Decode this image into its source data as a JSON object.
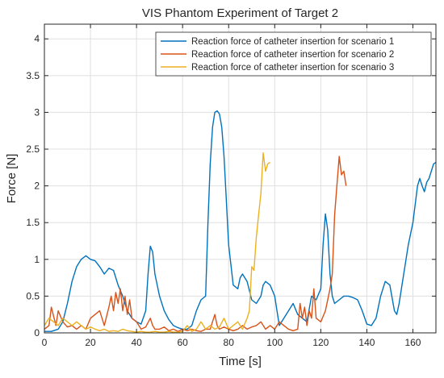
{
  "chart_data": {
    "type": "line",
    "title": "VIS Phantom Experiment of Target 2",
    "xlabel": "Time [s]",
    "ylabel": "Force [N]",
    "xlim": [
      0,
      170
    ],
    "ylim": [
      0,
      4.2
    ],
    "xticks": [
      0,
      20,
      40,
      60,
      80,
      100,
      120,
      140,
      160
    ],
    "yticks": [
      0,
      0.5,
      1,
      1.5,
      2,
      2.5,
      3,
      3.5,
      4
    ],
    "xtick_labels": [
      "0",
      "20",
      "40",
      "60",
      "80",
      "100",
      "120",
      "140",
      "160"
    ],
    "ytick_labels": [
      "0",
      "0.5",
      "1",
      "1.5",
      "2",
      "2.5",
      "3",
      "3.5",
      "4"
    ],
    "grid": true,
    "legend_position": "top-right",
    "series": [
      {
        "name": "Reaction force of catheter insertion for scenario 1",
        "color": "#0072BD",
        "x": [
          0,
          3,
          6,
          8,
          10,
          12,
          14,
          16,
          18,
          20,
          22,
          24,
          26,
          28,
          30,
          32,
          34,
          36,
          38,
          40,
          42,
          44,
          45,
          46,
          47,
          48,
          50,
          52,
          54,
          56,
          58,
          60,
          62,
          64,
          66,
          68,
          70,
          71,
          72,
          73,
          74,
          75,
          76,
          77,
          78,
          79,
          80,
          82,
          84,
          85,
          86,
          88,
          90,
          92,
          94,
          95,
          96,
          98,
          100,
          101,
          102,
          104,
          106,
          108,
          110,
          112,
          114,
          116,
          118,
          120,
          121,
          122,
          123,
          124,
          125,
          126,
          128,
          130,
          132,
          134,
          136,
          138,
          140,
          142,
          144,
          146,
          148,
          150,
          152,
          153,
          154,
          156,
          158,
          160,
          162,
          163,
          164,
          165,
          166,
          167,
          168,
          169,
          170
        ],
        "y": [
          0.02,
          0.02,
          0.05,
          0.15,
          0.4,
          0.7,
          0.9,
          1.0,
          1.05,
          1.0,
          0.98,
          0.9,
          0.8,
          0.88,
          0.85,
          0.65,
          0.5,
          0.3,
          0.2,
          0.15,
          0.12,
          0.3,
          0.8,
          1.18,
          1.1,
          0.8,
          0.5,
          0.3,
          0.18,
          0.1,
          0.07,
          0.05,
          0.05,
          0.1,
          0.3,
          0.45,
          0.5,
          1.5,
          2.3,
          2.8,
          3.0,
          3.02,
          2.98,
          2.8,
          2.4,
          1.8,
          1.2,
          0.65,
          0.6,
          0.75,
          0.8,
          0.7,
          0.45,
          0.4,
          0.5,
          0.65,
          0.7,
          0.65,
          0.5,
          0.3,
          0.1,
          0.2,
          0.3,
          0.4,
          0.25,
          0.2,
          0.15,
          0.5,
          0.45,
          0.6,
          1.2,
          1.62,
          1.4,
          0.8,
          0.5,
          0.4,
          0.45,
          0.5,
          0.5,
          0.48,
          0.45,
          0.3,
          0.12,
          0.1,
          0.2,
          0.5,
          0.7,
          0.65,
          0.3,
          0.25,
          0.4,
          0.8,
          1.2,
          1.5,
          2.0,
          2.1,
          2.0,
          1.92,
          2.05,
          2.1,
          2.2,
          2.3,
          2.32
        ]
      },
      {
        "name": "Reaction force of catheter insertion for scenario 2",
        "color": "#D95319",
        "x": [
          0,
          2,
          3,
          5,
          6,
          8,
          10,
          12,
          14,
          16,
          18,
          20,
          22,
          24,
          26,
          28,
          29,
          30,
          31,
          32,
          33,
          34,
          35,
          36,
          37,
          38,
          40,
          42,
          44,
          46,
          47,
          48,
          50,
          52,
          54,
          56,
          58,
          60,
          62,
          64,
          66,
          68,
          70,
          72,
          74,
          75,
          76,
          78,
          80,
          82,
          84,
          86,
          88,
          90,
          92,
          94,
          96,
          98,
          100,
          102,
          104,
          106,
          108,
          110,
          111,
          112,
          113,
          114,
          115,
          116,
          117,
          118,
          120,
          122,
          124,
          125,
          126,
          127,
          128,
          129,
          130,
          131
        ],
        "y": [
          0.05,
          0.1,
          0.35,
          0.1,
          0.3,
          0.15,
          0.08,
          0.1,
          0.05,
          0.1,
          0.05,
          0.2,
          0.25,
          0.3,
          0.1,
          0.35,
          0.5,
          0.3,
          0.55,
          0.4,
          0.6,
          0.3,
          0.5,
          0.25,
          0.45,
          0.2,
          0.15,
          0.05,
          0.08,
          0.2,
          0.1,
          0.05,
          0.05,
          0.08,
          0.03,
          0.05,
          0.02,
          0.05,
          0.03,
          0.05,
          0.03,
          0.02,
          0.05,
          0.05,
          0.25,
          0.1,
          0.05,
          0.08,
          0.05,
          0.03,
          0.05,
          0.1,
          0.05,
          0.08,
          0.1,
          0.15,
          0.05,
          0.1,
          0.05,
          0.15,
          0.1,
          0.05,
          0.03,
          0.05,
          0.4,
          0.2,
          0.35,
          0.1,
          0.3,
          0.2,
          0.6,
          0.2,
          0.15,
          0.3,
          0.6,
          0.8,
          1.6,
          2.0,
          2.4,
          2.15,
          2.2,
          2.0
        ]
      },
      {
        "name": "Reaction force of catheter insertion for scenario 3",
        "color": "#EDB120",
        "x": [
          0,
          2,
          4,
          6,
          8,
          10,
          12,
          14,
          16,
          18,
          20,
          22,
          24,
          26,
          28,
          30,
          32,
          34,
          36,
          38,
          40,
          42,
          44,
          46,
          48,
          50,
          52,
          54,
          56,
          58,
          60,
          62,
          64,
          66,
          68,
          70,
          72,
          74,
          76,
          78,
          80,
          82,
          84,
          86,
          88,
          89,
          90,
          91,
          92,
          93,
          94,
          95,
          96,
          97,
          98
        ],
        "y": [
          0.1,
          0.2,
          0.15,
          0.1,
          0.2,
          0.15,
          0.1,
          0.15,
          0.1,
          0.05,
          0.08,
          0.05,
          0.03,
          0.05,
          0.02,
          0.03,
          0.02,
          0.05,
          0.03,
          0.02,
          0.01,
          0.02,
          0.01,
          0.01,
          0.02,
          0.01,
          0.01,
          0.02,
          0.01,
          0.01,
          0.02,
          0.1,
          0.02,
          0.05,
          0.15,
          0.05,
          0.1,
          0.05,
          0.08,
          0.2,
          0.05,
          0.1,
          0.15,
          0.05,
          0.2,
          0.3,
          0.9,
          0.85,
          1.3,
          1.6,
          1.9,
          2.45,
          2.2,
          2.3,
          2.32
        ]
      }
    ]
  }
}
